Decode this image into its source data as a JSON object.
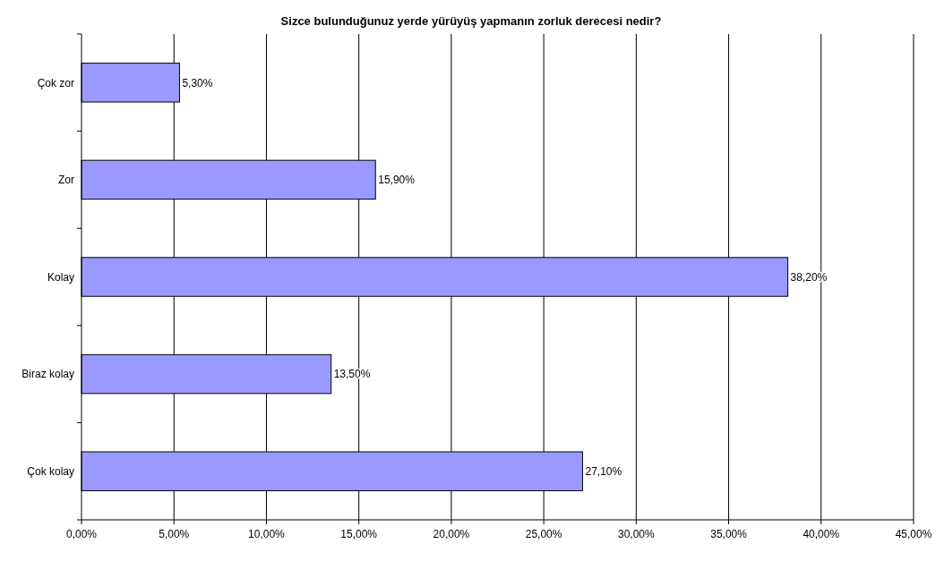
{
  "chart_data": {
    "type": "bar",
    "orientation": "horizontal",
    "title": "Sizce bulunduğunuz yerde yürüyüş yapmanın zorluk derecesi nedir?",
    "categories": [
      "Çok zor",
      "Zor",
      "Kolay",
      "Biraz kolay",
      "Çok kolay"
    ],
    "values": [
      5.3,
      15.9,
      38.2,
      13.5,
      27.1
    ],
    "value_labels": [
      "5,30%",
      "15,90%",
      "38,20%",
      "13,50%",
      "27,10%"
    ],
    "color": "#9999ff",
    "xlim": [
      0,
      45
    ],
    "xticks": [
      {
        "value": 0,
        "label": "0,00%"
      },
      {
        "value": 5,
        "label": "5,00%"
      },
      {
        "value": 10,
        "label": "10,00%"
      },
      {
        "value": 15,
        "label": "15,00%"
      },
      {
        "value": 20,
        "label": "20,00%"
      },
      {
        "value": 25,
        "label": "25,00%"
      },
      {
        "value": 30,
        "label": "30,00%"
      },
      {
        "value": 35,
        "label": "35,00%"
      },
      {
        "value": 40,
        "label": "40,00%"
      },
      {
        "value": 45,
        "label": "45,00%"
      }
    ],
    "grid": "x"
  }
}
